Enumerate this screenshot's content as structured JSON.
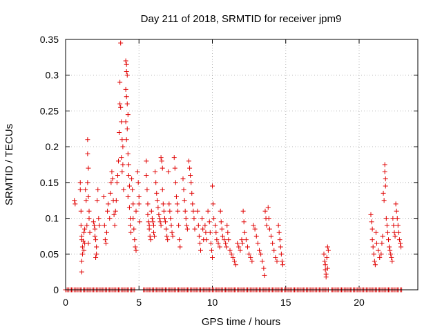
{
  "chart_data": {
    "type": "scatter",
    "title": "Day 211 of 2018, SRMTID for receiver jpm9",
    "xlabel": "GPS time / hours",
    "ylabel": "SRMTID / TECUs",
    "xlim": [
      0,
      24
    ],
    "ylim": [
      0,
      0.35
    ],
    "x_ticks": [
      "0",
      "5",
      "10",
      "15",
      "20"
    ],
    "y_ticks": [
      "0",
      "0.05",
      "0.1",
      "0.15",
      "0.2",
      "0.25",
      "0.3",
      "0.35"
    ],
    "grid": true,
    "marker": "+",
    "color": "#e00000",
    "series": [
      {
        "name": "SRMTID",
        "points": [
          [
            0.6,
            0.125
          ],
          [
            0.65,
            0.12
          ],
          [
            1.0,
            0.15
          ],
          [
            1.0,
            0.14
          ],
          [
            1.05,
            0.11
          ],
          [
            1.05,
            0.09
          ],
          [
            1.1,
            0.075
          ],
          [
            1.1,
            0.07
          ],
          [
            1.15,
            0.06
          ],
          [
            1.15,
            0.05
          ],
          [
            1.1,
            0.04
          ],
          [
            1.1,
            0.025
          ],
          [
            1.2,
            0.068
          ],
          [
            1.25,
            0.08
          ],
          [
            1.25,
            0.055
          ],
          [
            1.3,
            0.085
          ],
          [
            1.3,
            0.065
          ],
          [
            1.35,
            0.14
          ],
          [
            1.4,
            0.125
          ],
          [
            1.45,
            0.09
          ],
          [
            1.5,
            0.21
          ],
          [
            1.5,
            0.19
          ],
          [
            1.55,
            0.17
          ],
          [
            1.5,
            0.15
          ],
          [
            1.55,
            0.13
          ],
          [
            1.6,
            0.11
          ],
          [
            1.6,
            0.1
          ],
          [
            1.65,
            0.08
          ],
          [
            1.55,
            0.065
          ],
          [
            1.9,
            0.095
          ],
          [
            1.95,
            0.09
          ],
          [
            2.0,
            0.085
          ],
          [
            2.0,
            0.075
          ],
          [
            2.05,
            0.07
          ],
          [
            2.1,
            0.06
          ],
          [
            2.1,
            0.05
          ],
          [
            2.05,
            0.045
          ],
          [
            2.15,
            0.125
          ],
          [
            2.2,
            0.14
          ],
          [
            2.25,
            0.1
          ],
          [
            2.3,
            0.09
          ],
          [
            2.6,
            0.13
          ],
          [
            2.65,
            0.09
          ],
          [
            2.7,
            0.07
          ],
          [
            2.75,
            0.065
          ],
          [
            2.8,
            0.08
          ],
          [
            2.85,
            0.11
          ],
          [
            2.9,
            0.12
          ],
          [
            3.0,
            0.1
          ],
          [
            3.05,
            0.135
          ],
          [
            3.1,
            0.15
          ],
          [
            3.15,
            0.165
          ],
          [
            3.2,
            0.155
          ],
          [
            3.25,
            0.125
          ],
          [
            3.3,
            0.105
          ],
          [
            3.35,
            0.09
          ],
          [
            3.4,
            0.11
          ],
          [
            3.45,
            0.125
          ],
          [
            3.5,
            0.15
          ],
          [
            3.55,
            0.16
          ],
          [
            3.6,
            0.18
          ],
          [
            3.65,
            0.22
          ],
          [
            3.7,
            0.26
          ],
          [
            3.75,
            0.255
          ],
          [
            3.7,
            0.29
          ],
          [
            3.75,
            0.345
          ],
          [
            3.8,
            0.235
          ],
          [
            3.85,
            0.21
          ],
          [
            3.9,
            0.2
          ],
          [
            3.8,
            0.185
          ],
          [
            3.9,
            0.175
          ],
          [
            3.85,
            0.165
          ],
          [
            3.95,
            0.14
          ],
          [
            4.1,
            0.32
          ],
          [
            4.15,
            0.315
          ],
          [
            4.15,
            0.305
          ],
          [
            4.2,
            0.3
          ],
          [
            4.1,
            0.28
          ],
          [
            4.15,
            0.27
          ],
          [
            4.2,
            0.26
          ],
          [
            4.25,
            0.245
          ],
          [
            4.1,
            0.235
          ],
          [
            4.2,
            0.225
          ],
          [
            4.15,
            0.21
          ],
          [
            4.25,
            0.19
          ],
          [
            4.3,
            0.175
          ],
          [
            4.3,
            0.16
          ],
          [
            4.35,
            0.145
          ],
          [
            4.25,
            0.13
          ],
          [
            4.35,
            0.115
          ],
          [
            4.4,
            0.1
          ],
          [
            4.4,
            0.09
          ],
          [
            4.45,
            0.08
          ],
          [
            4.5,
            0.155
          ],
          [
            4.55,
            0.14
          ],
          [
            4.6,
            0.12
          ],
          [
            4.6,
            0.1
          ],
          [
            4.65,
            0.085
          ],
          [
            4.7,
            0.07
          ],
          [
            4.75,
            0.06
          ],
          [
            4.8,
            0.055
          ],
          [
            4.8,
            0.11
          ],
          [
            4.9,
            0.165
          ],
          [
            4.95,
            0.15
          ],
          [
            5.0,
            0.13
          ],
          [
            5.0,
            0.12
          ],
          [
            5.05,
            0.095
          ],
          [
            5.5,
            0.18
          ],
          [
            5.5,
            0.16
          ],
          [
            5.55,
            0.14
          ],
          [
            5.6,
            0.12
          ],
          [
            5.6,
            0.105
          ],
          [
            5.65,
            0.095
          ],
          [
            5.7,
            0.09
          ],
          [
            5.7,
            0.085
          ],
          [
            5.75,
            0.075
          ],
          [
            5.8,
            0.07
          ],
          [
            5.85,
            0.11
          ],
          [
            5.9,
            0.1
          ],
          [
            5.95,
            0.095
          ],
          [
            6.0,
            0.09
          ],
          [
            6.0,
            0.08
          ],
          [
            6.05,
            0.075
          ],
          [
            6.1,
            0.165
          ],
          [
            6.15,
            0.15
          ],
          [
            6.2,
            0.135
          ],
          [
            6.25,
            0.125
          ],
          [
            6.3,
            0.115
          ],
          [
            6.35,
            0.105
          ],
          [
            6.4,
            0.1
          ],
          [
            6.45,
            0.095
          ],
          [
            6.5,
            0.09
          ],
          [
            6.5,
            0.185
          ],
          [
            6.55,
            0.18
          ],
          [
            6.6,
            0.17
          ],
          [
            6.6,
            0.14
          ],
          [
            6.65,
            0.12
          ],
          [
            6.7,
            0.11
          ],
          [
            6.75,
            0.1
          ],
          [
            6.8,
            0.095
          ],
          [
            6.85,
            0.085
          ],
          [
            6.9,
            0.075
          ],
          [
            6.95,
            0.07
          ],
          [
            7.0,
            0.165
          ],
          [
            7.05,
            0.12
          ],
          [
            7.1,
            0.11
          ],
          [
            7.15,
            0.1
          ],
          [
            7.2,
            0.09
          ],
          [
            7.25,
            0.08
          ],
          [
            7.3,
            0.075
          ],
          [
            7.4,
            0.185
          ],
          [
            7.45,
            0.17
          ],
          [
            7.5,
            0.15
          ],
          [
            7.55,
            0.13
          ],
          [
            7.6,
            0.12
          ],
          [
            7.65,
            0.11
          ],
          [
            7.7,
            0.09
          ],
          [
            7.75,
            0.07
          ],
          [
            7.8,
            0.06
          ],
          [
            8.0,
            0.155
          ],
          [
            8.05,
            0.14
          ],
          [
            8.1,
            0.125
          ],
          [
            8.15,
            0.11
          ],
          [
            8.2,
            0.1
          ],
          [
            8.25,
            0.09
          ],
          [
            8.3,
            0.085
          ],
          [
            8.4,
            0.18
          ],
          [
            8.45,
            0.17
          ],
          [
            8.5,
            0.16
          ],
          [
            8.55,
            0.15
          ],
          [
            8.6,
            0.135
          ],
          [
            8.65,
            0.12
          ],
          [
            8.7,
            0.11
          ],
          [
            8.75,
            0.1
          ],
          [
            8.8,
            0.085
          ],
          [
            9.0,
            0.11
          ],
          [
            9.05,
            0.09
          ],
          [
            9.1,
            0.075
          ],
          [
            9.15,
            0.065
          ],
          [
            9.2,
            0.055
          ],
          [
            9.3,
            0.1
          ],
          [
            9.35,
            0.085
          ],
          [
            9.4,
            0.07
          ],
          [
            9.5,
            0.09
          ],
          [
            9.55,
            0.08
          ],
          [
            9.6,
            0.07
          ],
          [
            9.7,
            0.11
          ],
          [
            9.8,
            0.095
          ],
          [
            9.85,
            0.08
          ],
          [
            9.9,
            0.065
          ],
          [
            9.95,
            0.055
          ],
          [
            10.0,
            0.045
          ],
          [
            10.0,
            0.145
          ],
          [
            10.05,
            0.12
          ],
          [
            10.1,
            0.1
          ],
          [
            10.2,
            0.09
          ],
          [
            10.25,
            0.08
          ],
          [
            10.3,
            0.07
          ],
          [
            10.4,
            0.065
          ],
          [
            10.5,
            0.06
          ],
          [
            10.55,
            0.11
          ],
          [
            10.6,
            0.095
          ],
          [
            10.65,
            0.085
          ],
          [
            10.7,
            0.075
          ],
          [
            10.8,
            0.07
          ],
          [
            10.9,
            0.065
          ],
          [
            10.95,
            0.06
          ],
          [
            11.0,
            0.09
          ],
          [
            11.05,
            0.08
          ],
          [
            11.1,
            0.07
          ],
          [
            11.2,
            0.055
          ],
          [
            11.3,
            0.05
          ],
          [
            11.4,
            0.045
          ],
          [
            11.5,
            0.04
          ],
          [
            11.6,
            0.035
          ],
          [
            11.7,
            0.065
          ],
          [
            11.8,
            0.06
          ],
          [
            11.9,
            0.055
          ],
          [
            12.0,
            0.07
          ],
          [
            12.05,
            0.065
          ],
          [
            12.1,
            0.11
          ],
          [
            12.15,
            0.095
          ],
          [
            12.2,
            0.08
          ],
          [
            12.3,
            0.07
          ],
          [
            12.4,
            0.06
          ],
          [
            12.5,
            0.05
          ],
          [
            12.6,
            0.045
          ],
          [
            12.7,
            0.04
          ],
          [
            12.8,
            0.09
          ],
          [
            12.9,
            0.085
          ],
          [
            13.0,
            0.075
          ],
          [
            13.1,
            0.065
          ],
          [
            13.2,
            0.055
          ],
          [
            13.3,
            0.05
          ],
          [
            13.4,
            0.04
          ],
          [
            13.5,
            0.03
          ],
          [
            13.55,
            0.02
          ],
          [
            13.6,
            0.11
          ],
          [
            13.65,
            0.1
          ],
          [
            13.7,
            0.09
          ],
          [
            13.8,
            0.115
          ],
          [
            13.85,
            0.1
          ],
          [
            13.9,
            0.085
          ],
          [
            14.0,
            0.075
          ],
          [
            14.1,
            0.065
          ],
          [
            14.2,
            0.055
          ],
          [
            14.3,
            0.045
          ],
          [
            14.4,
            0.04
          ],
          [
            14.5,
            0.09
          ],
          [
            14.55,
            0.08
          ],
          [
            14.6,
            0.07
          ],
          [
            14.65,
            0.06
          ],
          [
            14.7,
            0.05
          ],
          [
            14.75,
            0.04
          ],
          [
            14.8,
            0.035
          ],
          [
            17.6,
            0.05
          ],
          [
            17.65,
            0.04
          ],
          [
            17.7,
            0.035
          ],
          [
            17.7,
            0.028
          ],
          [
            17.75,
            0.022
          ],
          [
            17.75,
            0.018
          ],
          [
            17.8,
            0.045
          ],
          [
            17.85,
            0.06
          ],
          [
            17.9,
            0.055
          ],
          [
            17.85,
            0.03
          ],
          [
            20.8,
            0.105
          ],
          [
            20.85,
            0.095
          ],
          [
            20.9,
            0.085
          ],
          [
            20.9,
            0.07
          ],
          [
            20.95,
            0.06
          ],
          [
            21.0,
            0.05
          ],
          [
            21.05,
            0.04
          ],
          [
            21.1,
            0.035
          ],
          [
            21.15,
            0.08
          ],
          [
            21.2,
            0.065
          ],
          [
            21.3,
            0.055
          ],
          [
            21.4,
            0.045
          ],
          [
            21.5,
            0.05
          ],
          [
            21.55,
            0.065
          ],
          [
            21.6,
            0.075
          ],
          [
            21.65,
            0.135
          ],
          [
            21.7,
            0.125
          ],
          [
            21.75,
            0.175
          ],
          [
            21.75,
            0.165
          ],
          [
            21.8,
            0.155
          ],
          [
            21.8,
            0.145
          ],
          [
            21.85,
            0.1
          ],
          [
            21.9,
            0.09
          ],
          [
            21.95,
            0.08
          ],
          [
            22.0,
            0.07
          ],
          [
            22.05,
            0.06
          ],
          [
            22.1,
            0.055
          ],
          [
            22.15,
            0.05
          ],
          [
            22.2,
            0.045
          ],
          [
            22.25,
            0.04
          ],
          [
            22.3,
            0.1
          ],
          [
            22.35,
            0.09
          ],
          [
            22.4,
            0.08
          ],
          [
            22.45,
            0.075
          ],
          [
            22.5,
            0.12
          ],
          [
            22.55,
            0.11
          ],
          [
            22.6,
            0.1
          ],
          [
            22.65,
            0.09
          ],
          [
            22.7,
            0.08
          ],
          [
            22.75,
            0.07
          ],
          [
            22.8,
            0.065
          ],
          [
            22.85,
            0.06
          ]
        ]
      }
    ],
    "zero_segments": [
      [
        0.0,
        4.7
      ],
      [
        5.3,
        17.9
      ],
      [
        18.1,
        22.9
      ]
    ]
  }
}
